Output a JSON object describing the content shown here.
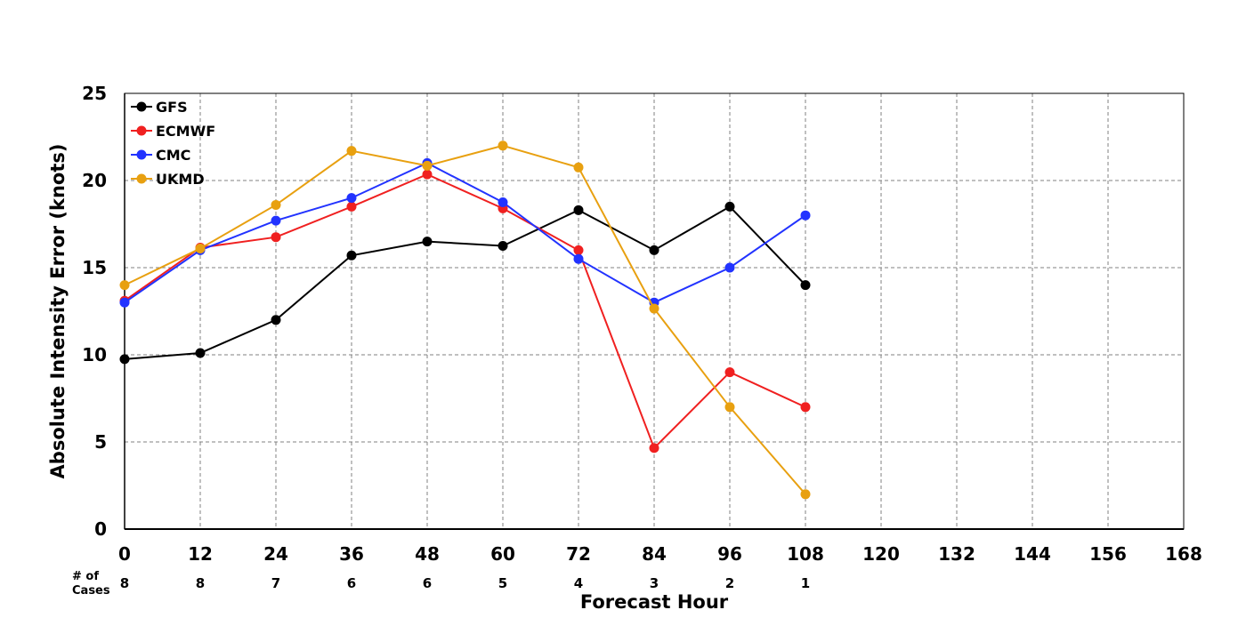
{
  "chart_data": {
    "type": "line",
    "x": [
      0,
      12,
      24,
      36,
      48,
      60,
      72,
      84,
      96,
      108
    ],
    "series": [
      {
        "name": "GFS",
        "color": "#000000",
        "values": [
          9.75,
          10.1,
          12,
          15.7,
          16.5,
          16.25,
          18.3,
          16,
          18.5,
          14
        ]
      },
      {
        "name": "ECMWF",
        "color": "#f02020",
        "values": [
          13.1,
          16.15,
          16.75,
          18.5,
          20.35,
          18.4,
          16,
          4.65,
          9,
          7
        ]
      },
      {
        "name": "CMC",
        "color": "#2233ff",
        "values": [
          13,
          16,
          17.7,
          19,
          21,
          18.75,
          15.5,
          13,
          15,
          18
        ]
      },
      {
        "name": "UKMD",
        "color": "#e8a010",
        "values": [
          14,
          16.1,
          18.6,
          21.7,
          20.85,
          22,
          20.75,
          12.65,
          7,
          2
        ]
      }
    ],
    "xlabel": "Forecast Hour",
    "ylabel": "Absolute Intensity Error (knots)",
    "xlim": [
      0,
      168
    ],
    "ylim": [
      0,
      25
    ],
    "xticks": [
      0,
      12,
      24,
      36,
      48,
      60,
      72,
      84,
      96,
      108,
      120,
      132,
      144,
      156,
      168
    ],
    "yticks": [
      0,
      5,
      10,
      15,
      20,
      25
    ],
    "cases_label_line1": "# of",
    "cases_label_line2": "Cases",
    "cases": [
      8,
      8,
      7,
      6,
      6,
      5,
      4,
      3,
      2,
      1
    ],
    "grid": true,
    "legend_position": "top-left"
  }
}
